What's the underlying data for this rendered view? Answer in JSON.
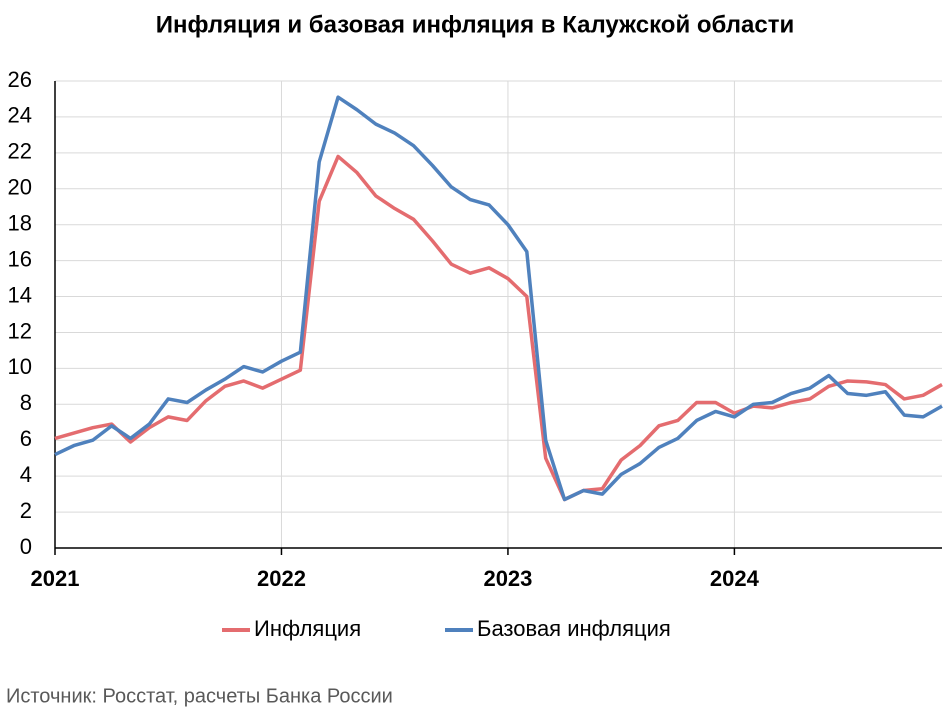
{
  "chart_data": {
    "type": "line",
    "title": "Инфляция и базовая инфляция в Калужской области",
    "source": "Источник: Росстат, расчеты Банка России",
    "categories": [
      "2021",
      null,
      null,
      null,
      null,
      null,
      null,
      null,
      null,
      null,
      null,
      null,
      "2022",
      null,
      null,
      null,
      null,
      null,
      null,
      null,
      null,
      null,
      null,
      null,
      "2023",
      null,
      null,
      null,
      null,
      null,
      null,
      null,
      null,
      null,
      null,
      null,
      "2024",
      null,
      null,
      null,
      null,
      null,
      null,
      null,
      null,
      null,
      null,
      null
    ],
    "series": [
      {
        "name": "Инфляция",
        "color": "#e46c6f",
        "values": [
          6.1,
          6.4,
          6.7,
          6.9,
          5.9,
          6.7,
          7.3,
          7.1,
          8.2,
          9.0,
          9.3,
          8.9,
          9.4,
          9.9,
          19.3,
          21.8,
          20.9,
          19.6,
          18.9,
          18.3,
          17.1,
          15.8,
          15.3,
          15.6,
          15.0,
          14.0,
          5.0,
          2.7,
          3.2,
          3.3,
          4.9,
          5.7,
          6.8,
          7.1,
          8.1,
          8.1,
          7.5,
          7.9,
          7.8,
          8.1,
          8.3,
          9.0,
          9.3,
          9.25,
          9.1,
          8.3,
          8.5,
          9.1
        ]
      },
      {
        "name": "Базовая инфляция",
        "color": "#4f81bd",
        "values": [
          5.2,
          5.7,
          6.0,
          6.8,
          6.1,
          6.9,
          8.3,
          8.1,
          8.8,
          9.4,
          10.1,
          9.8,
          10.4,
          10.9,
          21.5,
          25.1,
          24.4,
          23.6,
          23.1,
          22.4,
          21.3,
          20.1,
          19.4,
          19.1,
          18.0,
          16.5,
          6.0,
          2.7,
          3.2,
          3.0,
          4.1,
          4.7,
          5.6,
          6.1,
          7.1,
          7.6,
          7.3,
          8.0,
          8.1,
          8.6,
          8.9,
          9.6,
          8.6,
          8.5,
          8.7,
          7.4,
          7.3,
          7.9
        ]
      }
    ],
    "ylim": [
      0,
      26
    ],
    "yticks": [
      0,
      2,
      4,
      6,
      8,
      10,
      12,
      14,
      16,
      18,
      20,
      22,
      24,
      26
    ],
    "grid": true
  }
}
